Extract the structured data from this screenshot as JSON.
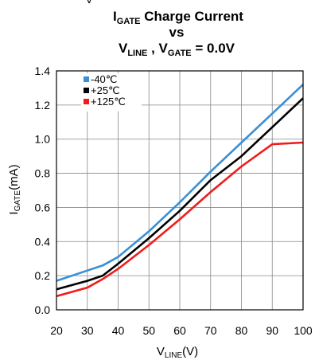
{
  "chart_data": {
    "type": "line",
    "title": {
      "top_fragment": "V",
      "line1_main": "I",
      "line1_sub": "GATE",
      "line1_rest": " Charge Current",
      "line2": "vs",
      "line3_a": "V",
      "line3_a_sub": "LINE",
      "line3_b": " , V",
      "line3_b_sub": "GATE",
      "line3_c": " = 0.0V"
    },
    "xlabel": {
      "main": "V",
      "sub": "LINE",
      "rest": "(V)"
    },
    "ylabel": {
      "main": "I",
      "sub": "GATE",
      "rest": "(mA)"
    },
    "xlim": [
      20,
      100
    ],
    "ylim": [
      0.0,
      1.4
    ],
    "xticks": [
      "20",
      "30",
      "40",
      "50",
      "60",
      "70",
      "80",
      "90",
      "100"
    ],
    "yticks": [
      "0.0",
      "0.2",
      "0.4",
      "0.6",
      "0.8",
      "1.0",
      "1.2",
      "1.4"
    ],
    "grid": true,
    "legend_position": "top-left",
    "series": [
      {
        "name": "-40℃",
        "color": "#3a8fd6",
        "x": [
          20,
          30,
          35,
          40,
          50,
          60,
          70,
          80,
          90,
          100
        ],
        "y": [
          0.17,
          0.23,
          0.26,
          0.31,
          0.46,
          0.63,
          0.81,
          0.98,
          1.15,
          1.32
        ]
      },
      {
        "name": "+25℃",
        "color": "#000000",
        "x": [
          20,
          30,
          35,
          40,
          50,
          60,
          70,
          80,
          90,
          100
        ],
        "y": [
          0.12,
          0.17,
          0.2,
          0.27,
          0.42,
          0.58,
          0.76,
          0.9,
          1.07,
          1.24
        ]
      },
      {
        "name": "+125℃",
        "color": "#ee1c1c",
        "x": [
          20,
          30,
          35,
          40,
          50,
          60,
          70,
          80,
          90,
          100
        ],
        "y": [
          0.08,
          0.13,
          0.18,
          0.24,
          0.38,
          0.53,
          0.69,
          0.84,
          0.97,
          0.98
        ]
      }
    ]
  }
}
